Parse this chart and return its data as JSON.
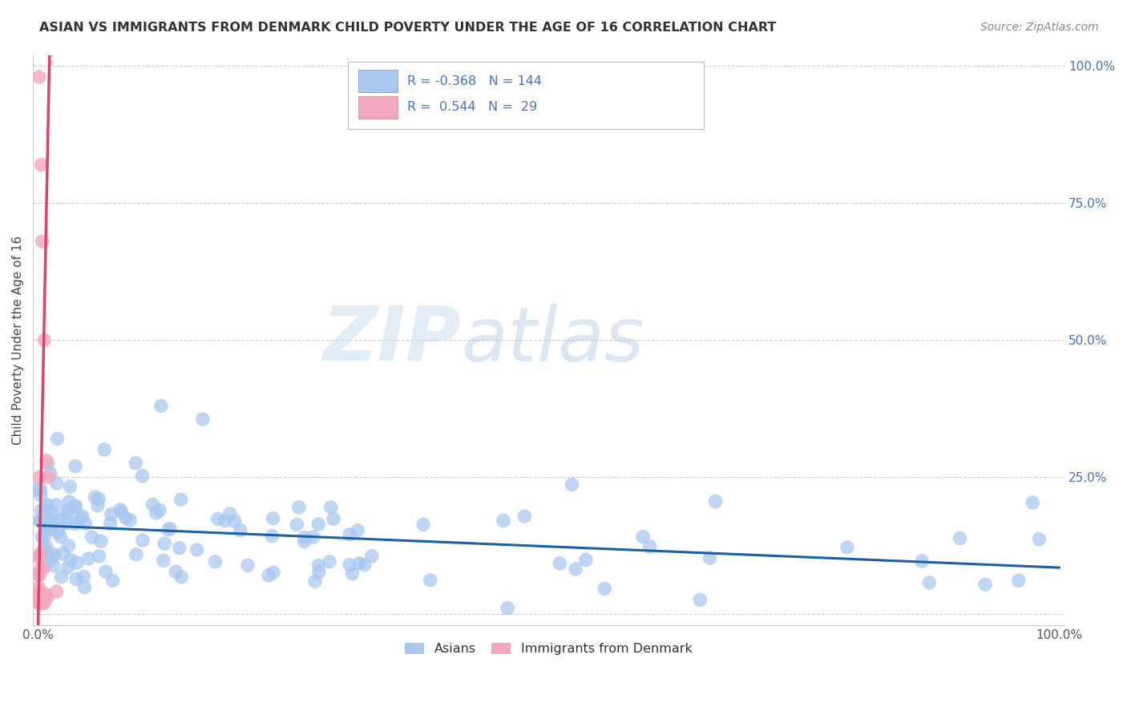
{
  "title": "ASIAN VS IMMIGRANTS FROM DENMARK CHILD POVERTY UNDER THE AGE OF 16 CORRELATION CHART",
  "source": "Source: ZipAtlas.com",
  "ylabel": "Child Poverty Under the Age of 16",
  "blue_R": "-0.368",
  "blue_N": "144",
  "pink_R": "0.544",
  "pink_N": "29",
  "blue_color": "#a8c8f0",
  "pink_color": "#f4a8c0",
  "blue_line_color": "#1a5fa8",
  "pink_line_color": "#e0406a",
  "pink_dash_color": "#d4a0b4",
  "watermark_zip": "ZIP",
  "watermark_atlas": "atlas",
  "legend_blue_label": "Asians",
  "legend_pink_label": "Immigrants from Denmark",
  "legend_text_color": "#4472c4",
  "legend_RN_color": "#4472c4",
  "right_axis_color": "#4472c4",
  "grid_color": "#cccccc",
  "title_color": "#333333",
  "source_color": "#888888"
}
